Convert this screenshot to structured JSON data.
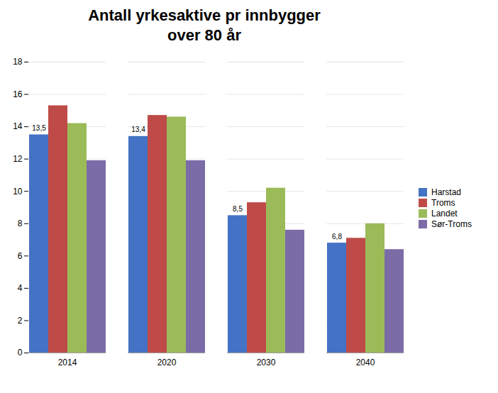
{
  "chart_data": {
    "type": "bar",
    "title": "Antall yrkesaktive pr innbygger\nover 80 år",
    "categories": [
      "2014",
      "2020",
      "2030",
      "2040"
    ],
    "series": [
      {
        "name": "Harstad",
        "color": "#4472C4",
        "values": [
          13.5,
          13.4,
          8.5,
          6.8
        ],
        "value_labels": [
          "13,5",
          "13,4",
          "8,5",
          "6,8"
        ]
      },
      {
        "name": "Troms",
        "color": "#BE4B48",
        "values": [
          15.3,
          14.7,
          9.3,
          7.1
        ]
      },
      {
        "name": "Landet",
        "color": "#9BBB59",
        "values": [
          14.2,
          14.6,
          10.2,
          8.0
        ]
      },
      {
        "name": "Sør-Troms",
        "color": "#7B6CA8",
        "values": [
          11.9,
          11.9,
          7.6,
          6.4
        ]
      }
    ],
    "ylim": [
      0,
      18
    ],
    "yticks": [
      0,
      2,
      4,
      6,
      8,
      10,
      12,
      14,
      16,
      18
    ],
    "grid": true,
    "legend": "right"
  }
}
